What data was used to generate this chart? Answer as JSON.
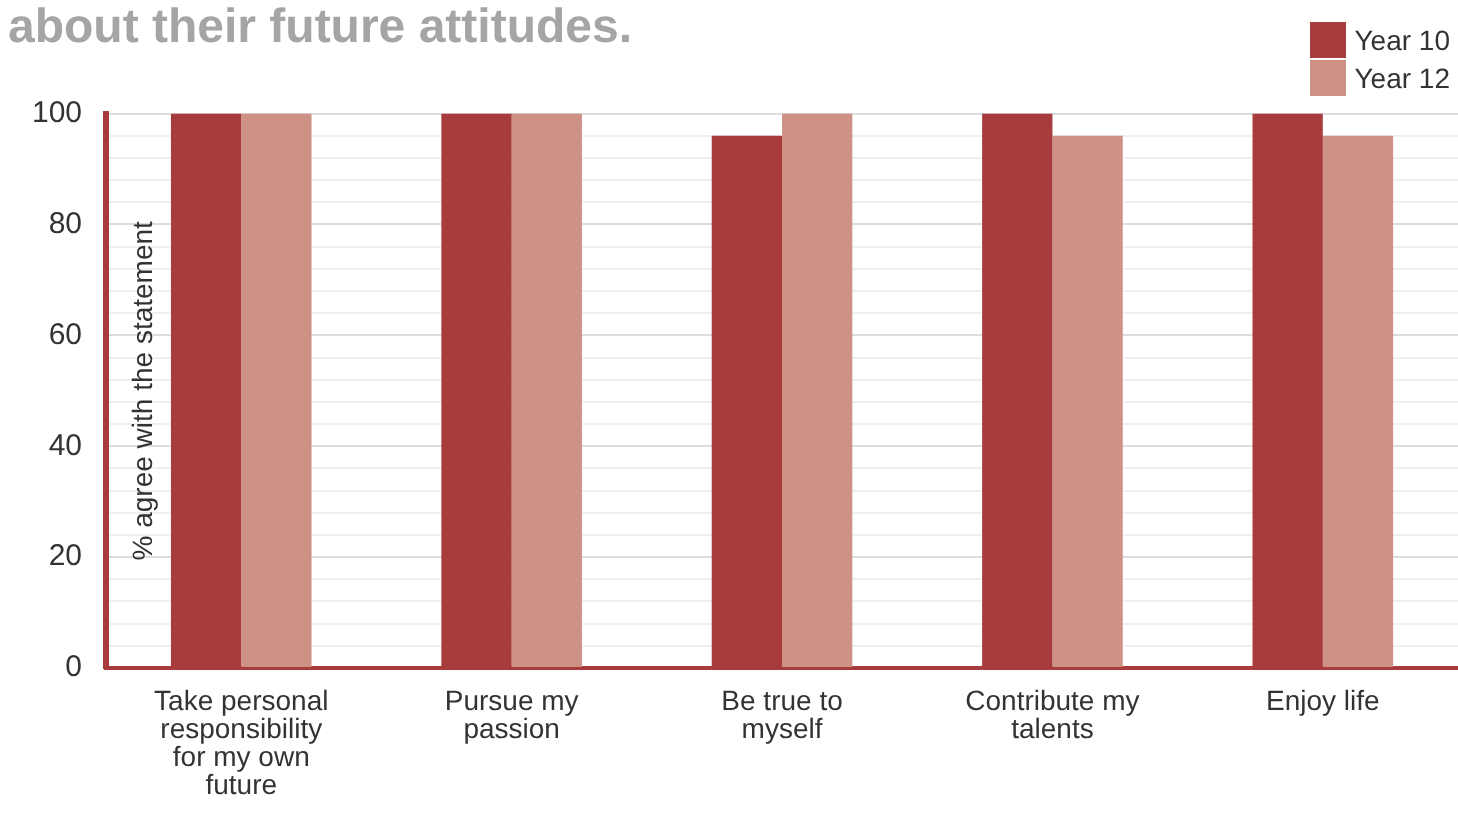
{
  "chart_data": {
    "type": "bar",
    "title": "about their future attitudes.",
    "ylabel": "% agree with the statement",
    "categories": [
      "Take personal responsibility for my own future",
      "Pursue my passion",
      "Be true to myself",
      "Contribute my talents",
      "Enjoy life"
    ],
    "series": [
      {
        "name": "Year 10",
        "color": "#a83c3c",
        "values": [
          100,
          100,
          96,
          100,
          100
        ]
      },
      {
        "name": "Year 12",
        "color": "#ce9185",
        "values": [
          100,
          100,
          100,
          96,
          96
        ]
      }
    ],
    "ylim": [
      0,
      100
    ],
    "yticks": [
      0,
      {
        "value": 4,
        "label": null
      },
      {
        "value": 8,
        "label": null
      },
      {
        "value": 12,
        "label": null
      },
      {
        "value": 16,
        "label": null
      },
      20,
      {
        "value": 24,
        "label": null
      },
      {
        "value": 28,
        "label": null
      },
      {
        "value": 32,
        "label": null
      },
      {
        "value": 36,
        "label": null
      },
      40,
      {
        "value": 44,
        "label": null
      },
      {
        "value": 48,
        "label": null
      },
      {
        "value": 52,
        "label": null
      },
      {
        "value": 56,
        "label": null
      },
      60,
      {
        "value": 64,
        "label": null
      },
      {
        "value": 68,
        "label": null
      },
      {
        "value": 72,
        "label": null
      },
      {
        "value": 76,
        "label": null
      },
      80,
      {
        "value": 84,
        "label": null
      },
      {
        "value": 88,
        "label": null
      },
      {
        "value": 92,
        "label": null
      },
      {
        "value": 96,
        "label": null
      },
      100
    ],
    "grid": "y",
    "legend": "top right"
  }
}
